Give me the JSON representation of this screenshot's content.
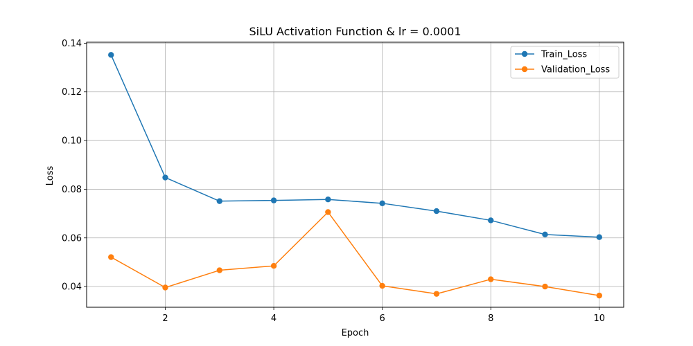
{
  "chart_data": {
    "type": "line",
    "title": "SiLU Activation Function & lr = 0.0001",
    "xlabel": "Epoch",
    "ylabel": "Loss",
    "x": [
      1,
      2,
      3,
      4,
      5,
      6,
      7,
      8,
      9,
      10
    ],
    "xlim": [
      0.55,
      10.45
    ],
    "ylim": [
      0.0315,
      0.1404
    ],
    "xticks": [
      2,
      4,
      6,
      8,
      10
    ],
    "yticks": [
      0.04,
      0.06,
      0.08,
      0.1,
      0.12,
      0.14
    ],
    "ytick_labels": [
      "0.04",
      "0.06",
      "0.08",
      "0.10",
      "0.12",
      "0.14"
    ],
    "grid": true,
    "legend_position": "top-right",
    "series": [
      {
        "name": "Train_Loss",
        "color": "#1f77b4",
        "marker": "circle",
        "values": [
          0.1352,
          0.0848,
          0.0751,
          0.0754,
          0.0758,
          0.0742,
          0.071,
          0.0672,
          0.0614,
          0.0603
        ]
      },
      {
        "name": "Validation_Loss",
        "color": "#ff7f0e",
        "marker": "circle",
        "values": [
          0.0521,
          0.0396,
          0.0467,
          0.0485,
          0.0706,
          0.0403,
          0.037,
          0.043,
          0.04,
          0.0363
        ]
      }
    ]
  }
}
